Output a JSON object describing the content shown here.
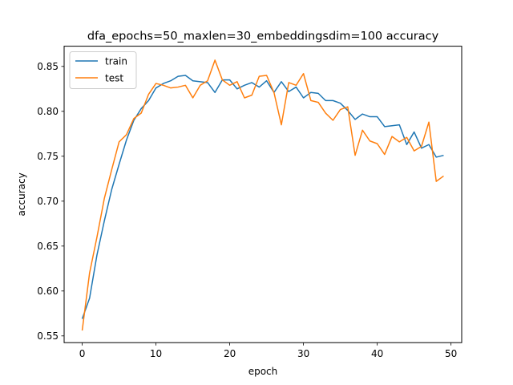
{
  "chart_data": {
    "type": "line",
    "title": "dfa_epochs=50_maxlen=30_embeddingsdim=100 accuracy",
    "xlabel": "epoch",
    "ylabel": "accuracy",
    "xlim": [
      -2.45,
      51.45
    ],
    "ylim": [
      0.5425,
      0.8725
    ],
    "xticks": [
      0,
      10,
      20,
      30,
      40,
      50
    ],
    "yticks": [
      0.55,
      0.6,
      0.65,
      0.7,
      0.75,
      0.8,
      0.85
    ],
    "ytick_labels": [
      "0.55",
      "0.60",
      "0.65",
      "0.70",
      "0.75",
      "0.80",
      "0.85"
    ],
    "legend_position": "upper-left",
    "x": [
      0,
      1,
      2,
      3,
      4,
      5,
      6,
      7,
      8,
      9,
      10,
      11,
      12,
      13,
      14,
      15,
      16,
      17,
      18,
      19,
      20,
      21,
      22,
      23,
      24,
      25,
      26,
      27,
      28,
      29,
      30,
      31,
      32,
      33,
      34,
      35,
      36,
      37,
      38,
      39,
      40,
      41,
      42,
      43,
      44,
      45,
      46,
      47,
      48,
      49
    ],
    "series": [
      {
        "name": "train",
        "color": "#1f77b4",
        "values": [
          0.569,
          0.592,
          0.64,
          0.678,
          0.713,
          0.741,
          0.768,
          0.79,
          0.803,
          0.812,
          0.826,
          0.831,
          0.834,
          0.839,
          0.84,
          0.834,
          0.833,
          0.832,
          0.821,
          0.835,
          0.835,
          0.825,
          0.829,
          0.832,
          0.827,
          0.834,
          0.821,
          0.833,
          0.822,
          0.827,
          0.815,
          0.821,
          0.82,
          0.812,
          0.812,
          0.809,
          0.801,
          0.791,
          0.797,
          0.794,
          0.794,
          0.783,
          0.784,
          0.785,
          0.763,
          0.777,
          0.759,
          0.763,
          0.749,
          0.751
        ]
      },
      {
        "name": "test",
        "color": "#ff7f0e",
        "values": [
          0.556,
          0.62,
          0.66,
          0.703,
          0.735,
          0.766,
          0.774,
          0.792,
          0.798,
          0.819,
          0.831,
          0.829,
          0.826,
          0.827,
          0.829,
          0.815,
          0.829,
          0.834,
          0.857,
          0.835,
          0.829,
          0.833,
          0.815,
          0.818,
          0.839,
          0.84,
          0.821,
          0.785,
          0.832,
          0.829,
          0.842,
          0.812,
          0.81,
          0.798,
          0.79,
          0.802,
          0.805,
          0.751,
          0.779,
          0.767,
          0.764,
          0.752,
          0.772,
          0.766,
          0.771,
          0.756,
          0.761,
          0.788,
          0.722,
          0.728
        ]
      }
    ]
  }
}
